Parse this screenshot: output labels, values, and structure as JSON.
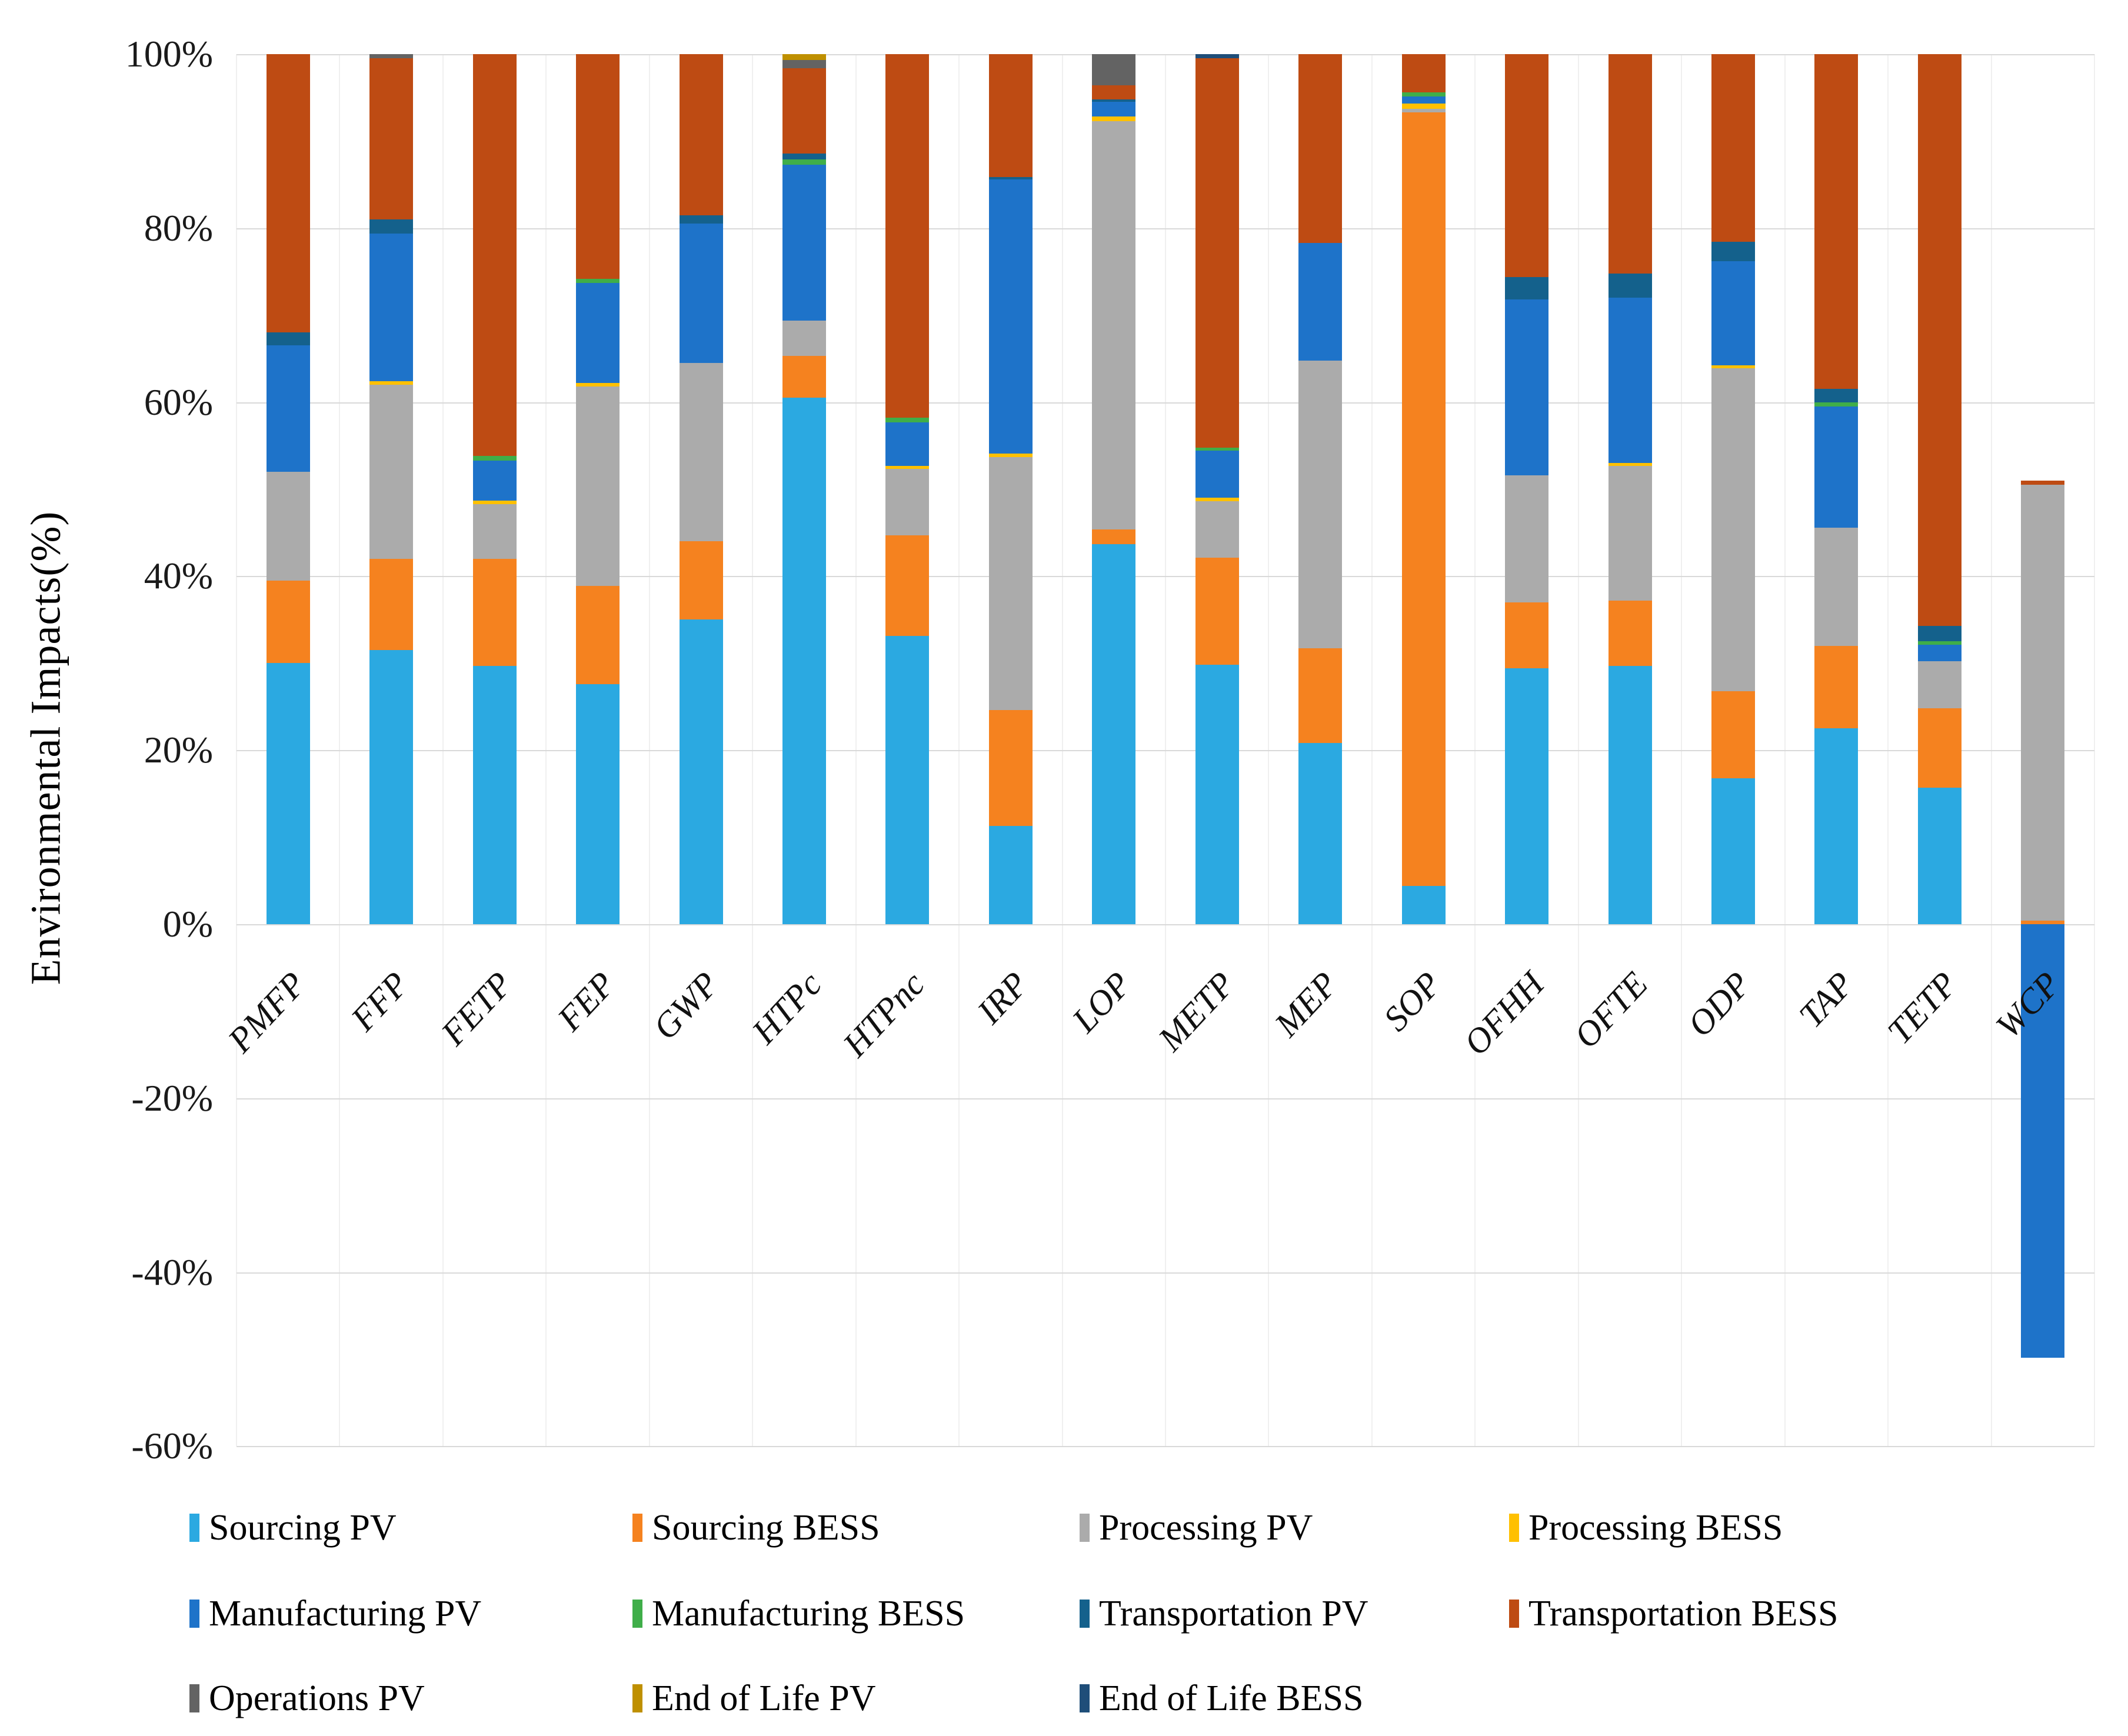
{
  "y_axis": {
    "title": "Environmental Impacts(%)",
    "ticks": [
      {
        "label": "100%",
        "value": 100
      },
      {
        "label": "80%",
        "value": 80
      },
      {
        "label": "60%",
        "value": 60
      },
      {
        "label": "40%",
        "value": 40
      },
      {
        "label": "20%",
        "value": 20
      },
      {
        "label": "0%",
        "value": 0
      },
      {
        "label": "-20%",
        "value": -20
      },
      {
        "label": "-40%",
        "value": -40
      },
      {
        "label": "-60%",
        "value": -60
      }
    ]
  },
  "chart_data": {
    "type": "bar",
    "subtype": "stacked-percent",
    "title": "",
    "xlabel": "",
    "ylabel": "Environmental Impacts(%)",
    "ylim": [
      -60,
      100
    ],
    "grid": true,
    "legend_position": "bottom",
    "categories": [
      "PMFP",
      "FFP",
      "FETP",
      "FEP",
      "GWP",
      "HTPc",
      "HTPnc",
      "IRP",
      "LOP",
      "METP",
      "MEP",
      "SOP",
      "OFHH",
      "OFTE",
      "ODP",
      "TAP",
      "TETP",
      "WCP"
    ],
    "series": [
      {
        "name": "Sourcing PV",
        "color": "#2BA9E1",
        "values": [
          30.0,
          31.5,
          29.7,
          27.6,
          35.0,
          60.5,
          33.1,
          11.3,
          43.7,
          29.8,
          20.8,
          4.4,
          29.4,
          29.7,
          16.8,
          22.5,
          15.7,
          0
        ]
      },
      {
        "name": "Sourcing BESS",
        "color": "#F5821F",
        "values": [
          9.5,
          10.5,
          12.3,
          11.3,
          9.0,
          4.8,
          11.6,
          13.3,
          1.7,
          12.3,
          10.9,
          88.9,
          7.6,
          7.5,
          10.0,
          9.5,
          9.1,
          0.4
        ]
      },
      {
        "name": "Processing PV",
        "color": "#ABABAB",
        "values": [
          12.5,
          20.0,
          6.3,
          22.9,
          20.5,
          4.1,
          7.6,
          29.1,
          46.9,
          6.5,
          33.1,
          0.4,
          14.6,
          15.5,
          37.1,
          13.6,
          5.4,
          50.1
        ]
      },
      {
        "name": "Processing BESS",
        "color": "#FFC000",
        "values": [
          0,
          0.4,
          0.4,
          0.4,
          0,
          0,
          0.4,
          0.4,
          0.5,
          0.4,
          0,
          0.6,
          0,
          0.3,
          0.3,
          0,
          0,
          0
        ]
      },
      {
        "name": "Manufacturing PV",
        "color": "#1E73C9",
        "values": [
          14.5,
          17.0,
          4.6,
          11.5,
          16.0,
          17.9,
          5.0,
          31.5,
          1.7,
          5.4,
          13.5,
          0.8,
          20.2,
          19.0,
          12.0,
          13.9,
          1.9,
          -49.8
        ]
      },
      {
        "name": "Manufacturing BESS",
        "color": "#3FAE49",
        "values": [
          0,
          0,
          0.5,
          0.5,
          0,
          0.6,
          0.5,
          0,
          0,
          0.4,
          0,
          0.5,
          0,
          0,
          0,
          0.5,
          0.4,
          0
        ]
      },
      {
        "name": "Transportation PV",
        "color": "#14618C",
        "values": [
          1.5,
          1.6,
          0,
          0,
          1.0,
          0.7,
          0,
          0.3,
          0.3,
          0,
          0,
          0,
          2.6,
          2.8,
          2.2,
          1.5,
          1.8,
          0
        ]
      },
      {
        "name": "Transportation BESS",
        "color": "#BE4B13",
        "values": [
          32.0,
          18.5,
          46.2,
          25.8,
          18.5,
          9.8,
          41.8,
          14.1,
          1.6,
          44.7,
          21.7,
          4.4,
          25.6,
          25.2,
          21.6,
          38.5,
          65.7,
          0.5
        ]
      },
      {
        "name": "Operations PV",
        "color": "#636363",
        "values": [
          0,
          0.5,
          0,
          0,
          0,
          0.9,
          0,
          0,
          3.6,
          0,
          0,
          0,
          0,
          0,
          0,
          0,
          0,
          0
        ]
      },
      {
        "name": "End of Life PV",
        "color": "#BF9000",
        "values": [
          0,
          0,
          0,
          0,
          0,
          0.7,
          0,
          0,
          0,
          0,
          0,
          0,
          0,
          0,
          0,
          0,
          0,
          0
        ]
      },
      {
        "name": "End of Life BESS",
        "color": "#1F4E79",
        "values": [
          0,
          0,
          0,
          0,
          0,
          0,
          0,
          0,
          0,
          0.5,
          0,
          0,
          0,
          0,
          0,
          0,
          0,
          0
        ]
      }
    ]
  },
  "legend": {
    "rows": [
      [
        "Sourcing PV",
        "Sourcing BESS",
        "Processing PV",
        "Processing BESS"
      ],
      [
        "Manufacturing PV",
        "Manufacturing BESS",
        "Transportation PV",
        "Transportation BESS"
      ],
      [
        "Operations PV",
        "End of Life PV",
        "End of Life BESS"
      ]
    ]
  }
}
